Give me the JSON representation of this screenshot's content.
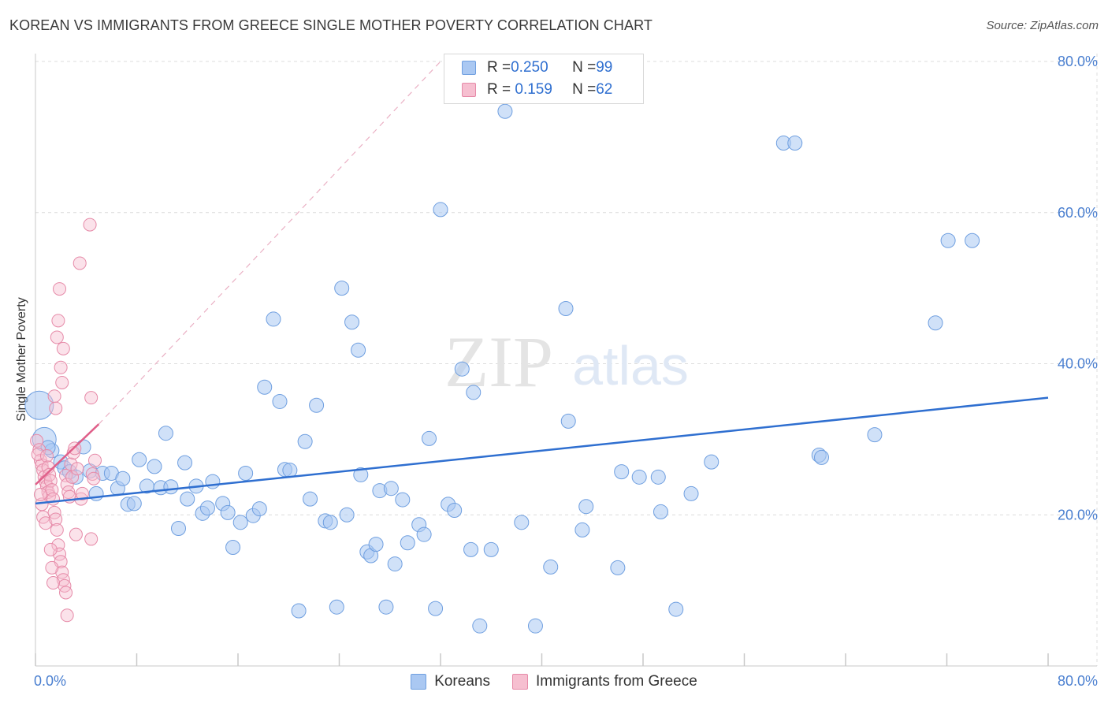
{
  "title": "KOREAN VS IMMIGRANTS FROM GREECE SINGLE MOTHER POVERTY CORRELATION CHART",
  "source": "Source: ZipAtlas.com",
  "watermark": {
    "zip": "ZIP",
    "atlas": "atlas"
  },
  "stats": [
    {
      "r_label": "R = ",
      "r_value": "0.250",
      "n_label": "N = ",
      "n_value": "99",
      "color": "#aac8f2",
      "border": "#6f9fe0"
    },
    {
      "r_label": "R = ",
      "r_value": " 0.159",
      "n_label": "N = ",
      "n_value": "62",
      "color": "#f6bfd0",
      "border": "#e68aa8"
    }
  ],
  "legend": [
    {
      "label": "Koreans",
      "color": "#aac8f2",
      "border": "#6f9fe0"
    },
    {
      "label": "Immigrants from Greece",
      "color": "#f6bfd0",
      "border": "#e68aa8"
    }
  ],
  "chart_data": {
    "type": "scatter",
    "title": "KOREAN VS IMMIGRANTS FROM GREECE SINGLE MOTHER POVERTY CORRELATION CHART",
    "xlabel": "",
    "ylabel": "Single Mother Poverty",
    "xlim": [
      0,
      80
    ],
    "ylim": [
      0,
      80
    ],
    "x_tick_labels": [
      "0.0%",
      "80.0%"
    ],
    "y_ticks": [
      20,
      40,
      60,
      80
    ],
    "y_tick_labels": [
      "20.0%",
      "40.0%",
      "60.0%",
      "80.0%"
    ],
    "grid": true,
    "legend_position": "bottom",
    "colors": {
      "koreans_fill": "#aac8f2",
      "koreans_stroke": "#6f9fe0",
      "koreans_line": "#2f6fd0",
      "greece_fill": "#f6bfd0",
      "greece_stroke": "#e68aa8",
      "greece_line": "#e0608a"
    },
    "series": [
      {
        "name": "Koreans",
        "points": [
          [
            0.3,
            34.5
          ],
          [
            0.7,
            30.0
          ],
          [
            1.3,
            28.5
          ],
          [
            2.0,
            27.0
          ],
          [
            2.3,
            26.2
          ],
          [
            2.7,
            25.7
          ],
          [
            3.2,
            25.0
          ],
          [
            3.8,
            29.0
          ],
          [
            4.3,
            25.8
          ],
          [
            4.8,
            22.8
          ],
          [
            5.3,
            25.5
          ],
          [
            6.0,
            25.5
          ],
          [
            6.5,
            23.5
          ],
          [
            6.9,
            24.8
          ],
          [
            7.3,
            21.4
          ],
          [
            7.8,
            21.5
          ],
          [
            8.2,
            27.3
          ],
          [
            8.8,
            23.8
          ],
          [
            9.4,
            26.4
          ],
          [
            9.9,
            23.6
          ],
          [
            10.3,
            30.8
          ],
          [
            10.7,
            23.7
          ],
          [
            11.3,
            18.2
          ],
          [
            11.8,
            26.9
          ],
          [
            12.0,
            22.1
          ],
          [
            12.7,
            23.8
          ],
          [
            13.2,
            20.2
          ],
          [
            13.6,
            20.9
          ],
          [
            14.0,
            24.4
          ],
          [
            14.8,
            21.5
          ],
          [
            15.2,
            20.3
          ],
          [
            15.6,
            15.7
          ],
          [
            16.2,
            19.0
          ],
          [
            16.6,
            25.5
          ],
          [
            17.2,
            19.9
          ],
          [
            17.7,
            20.8
          ],
          [
            18.1,
            36.9
          ],
          [
            18.8,
            45.9
          ],
          [
            19.3,
            35.0
          ],
          [
            19.7,
            26.0
          ],
          [
            20.1,
            25.9
          ],
          [
            20.8,
            7.3
          ],
          [
            21.3,
            29.7
          ],
          [
            21.7,
            22.1
          ],
          [
            22.2,
            34.5
          ],
          [
            22.9,
            19.2
          ],
          [
            23.3,
            19.0
          ],
          [
            23.8,
            7.8
          ],
          [
            24.2,
            50.0
          ],
          [
            24.6,
            20.0
          ],
          [
            25.0,
            45.5
          ],
          [
            25.5,
            41.8
          ],
          [
            25.7,
            25.3
          ],
          [
            26.2,
            15.1
          ],
          [
            26.5,
            14.6
          ],
          [
            26.9,
            16.1
          ],
          [
            27.2,
            23.2
          ],
          [
            27.7,
            7.8
          ],
          [
            28.1,
            23.5
          ],
          [
            28.4,
            13.5
          ],
          [
            29.0,
            22.0
          ],
          [
            29.4,
            16.3
          ],
          [
            30.3,
            18.7
          ],
          [
            30.7,
            17.4
          ],
          [
            31.1,
            30.1
          ],
          [
            31.6,
            7.6
          ],
          [
            32.0,
            60.4
          ],
          [
            32.6,
            21.4
          ],
          [
            33.1,
            20.6
          ],
          [
            33.7,
            39.3
          ],
          [
            34.4,
            15.4
          ],
          [
            34.6,
            36.2
          ],
          [
            35.1,
            5.3
          ],
          [
            36.0,
            15.4
          ],
          [
            37.1,
            73.4
          ],
          [
            38.4,
            19.0
          ],
          [
            39.5,
            5.3
          ],
          [
            40.7,
            13.1
          ],
          [
            41.9,
            47.3
          ],
          [
            42.1,
            32.4
          ],
          [
            43.2,
            18.0
          ],
          [
            43.5,
            21.1
          ],
          [
            46.0,
            13.0
          ],
          [
            46.3,
            25.7
          ],
          [
            47.7,
            25.0
          ],
          [
            49.2,
            25.0
          ],
          [
            49.4,
            20.4
          ],
          [
            50.6,
            7.5
          ],
          [
            51.8,
            22.8
          ],
          [
            53.4,
            27.0
          ],
          [
            59.1,
            69.2
          ],
          [
            60.0,
            69.2
          ],
          [
            61.9,
            27.9
          ],
          [
            62.1,
            27.6
          ],
          [
            66.3,
            30.6
          ],
          [
            71.1,
            45.4
          ],
          [
            72.1,
            56.3
          ],
          [
            74.0,
            56.3
          ],
          [
            1.0,
            28.9
          ]
        ],
        "trend": [
          [
            0,
            21.5
          ],
          [
            80,
            35.5
          ]
        ]
      },
      {
        "name": "Immigrants from Greece",
        "points": [
          [
            0.1,
            29.8
          ],
          [
            0.3,
            28.6
          ],
          [
            0.4,
            27.2
          ],
          [
            0.5,
            26.6
          ],
          [
            0.6,
            25.9
          ],
          [
            0.7,
            25.0
          ],
          [
            0.8,
            24.4
          ],
          [
            0.9,
            23.8
          ],
          [
            1.0,
            23.0
          ],
          [
            1.1,
            22.5
          ],
          [
            0.2,
            28.0
          ],
          [
            0.5,
            21.4
          ],
          [
            0.6,
            19.7
          ],
          [
            0.8,
            18.9
          ],
          [
            0.9,
            27.8
          ],
          [
            1.0,
            26.3
          ],
          [
            1.1,
            25.3
          ],
          [
            1.2,
            24.5
          ],
          [
            1.3,
            23.3
          ],
          [
            1.4,
            22.1
          ],
          [
            1.5,
            20.3
          ],
          [
            1.6,
            19.4
          ],
          [
            1.7,
            18.0
          ],
          [
            1.8,
            16.0
          ],
          [
            1.9,
            14.8
          ],
          [
            2.0,
            13.8
          ],
          [
            2.1,
            12.4
          ],
          [
            2.2,
            11.4
          ],
          [
            2.3,
            10.6
          ],
          [
            2.4,
            9.7
          ],
          [
            2.5,
            6.7
          ],
          [
            1.2,
            15.4
          ],
          [
            1.3,
            13.0
          ],
          [
            1.4,
            11.0
          ],
          [
            1.5,
            35.7
          ],
          [
            1.6,
            34.1
          ],
          [
            1.7,
            43.5
          ],
          [
            1.8,
            45.7
          ],
          [
            1.9,
            49.9
          ],
          [
            2.0,
            39.5
          ],
          [
            2.1,
            37.5
          ],
          [
            2.2,
            42.0
          ],
          [
            2.4,
            25.2
          ],
          [
            2.5,
            24.0
          ],
          [
            2.6,
            23.0
          ],
          [
            2.7,
            22.4
          ],
          [
            2.8,
            26.7
          ],
          [
            2.9,
            25.0
          ],
          [
            3.0,
            28.2
          ],
          [
            3.1,
            28.8
          ],
          [
            3.3,
            26.1
          ],
          [
            3.5,
            53.3
          ],
          [
            3.6,
            22.1
          ],
          [
            3.7,
            22.8
          ],
          [
            4.3,
            58.4
          ],
          [
            4.4,
            35.5
          ],
          [
            4.5,
            25.4
          ],
          [
            4.6,
            24.8
          ],
          [
            4.7,
            27.2
          ],
          [
            3.2,
            17.4
          ],
          [
            4.4,
            16.8
          ],
          [
            0.4,
            22.7
          ]
        ],
        "trend": [
          [
            0,
            24.0
          ],
          [
            5.0,
            32.0
          ]
        ],
        "trend_extension": [
          [
            5.0,
            32.0
          ],
          [
            32.0,
            80.0
          ]
        ]
      }
    ]
  }
}
